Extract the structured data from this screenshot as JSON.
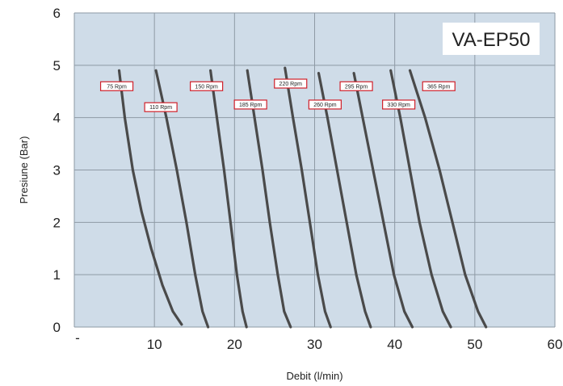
{
  "chart_data": {
    "type": "line",
    "title": "",
    "xlabel": "Debit (l/min)",
    "ylabel": "Presiune (Bar)",
    "model_label": "VA-EP50",
    "xlim": [
      0,
      60
    ],
    "ylim": [
      0,
      6
    ],
    "xticks": [
      "-",
      "10",
      "20",
      "30",
      "40",
      "50",
      "60"
    ],
    "yticks": [
      "0",
      "1",
      "2",
      "3",
      "4",
      "5",
      "6"
    ],
    "grid": true,
    "colors": {
      "plot_bg": "#cfdce8",
      "grid": "#8e9aa5",
      "line": "#4a4a4a",
      "label_border": "#d0202a"
    },
    "series": [
      {
        "name": "75 Rpm",
        "points": [
          [
            5.6,
            4.9
          ],
          [
            6.3,
            4.0
          ],
          [
            7.3,
            3.0
          ],
          [
            8.4,
            2.2
          ],
          [
            9.6,
            1.5
          ],
          [
            11.0,
            0.8
          ],
          [
            12.3,
            0.3
          ],
          [
            13.4,
            0.05
          ]
        ]
      },
      {
        "name": "110 Rpm",
        "points": [
          [
            10.2,
            4.9
          ],
          [
            11.5,
            4.0
          ],
          [
            12.8,
            3.0
          ],
          [
            14.0,
            2.0
          ],
          [
            15.1,
            1.0
          ],
          [
            16.0,
            0.3
          ],
          [
            16.7,
            0
          ]
        ]
      },
      {
        "name": "150 Rpm",
        "points": [
          [
            17.0,
            4.9
          ],
          [
            17.8,
            4.0
          ],
          [
            18.7,
            3.0
          ],
          [
            19.5,
            2.0
          ],
          [
            20.3,
            1.0
          ],
          [
            21.0,
            0.3
          ],
          [
            21.5,
            0
          ]
        ]
      },
      {
        "name": "185 Rpm",
        "points": [
          [
            21.6,
            4.9
          ],
          [
            22.5,
            4.0
          ],
          [
            23.5,
            3.0
          ],
          [
            24.4,
            2.0
          ],
          [
            25.4,
            1.0
          ],
          [
            26.2,
            0.3
          ],
          [
            27.0,
            0
          ]
        ]
      },
      {
        "name": "220 Rpm",
        "points": [
          [
            26.3,
            4.95
          ],
          [
            27.3,
            4.0
          ],
          [
            28.4,
            3.0
          ],
          [
            29.4,
            2.0
          ],
          [
            30.4,
            1.0
          ],
          [
            31.3,
            0.3
          ],
          [
            32.0,
            0
          ]
        ]
      },
      {
        "name": "260 Rpm",
        "points": [
          [
            30.5,
            4.85
          ],
          [
            31.6,
            4.0
          ],
          [
            32.8,
            3.0
          ],
          [
            34.0,
            2.0
          ],
          [
            35.2,
            1.0
          ],
          [
            36.3,
            0.3
          ],
          [
            37.0,
            0
          ]
        ]
      },
      {
        "name": "295 Rpm",
        "points": [
          [
            34.9,
            4.85
          ],
          [
            36.0,
            4.0
          ],
          [
            37.3,
            3.0
          ],
          [
            38.6,
            2.0
          ],
          [
            39.9,
            1.0
          ],
          [
            41.2,
            0.3
          ],
          [
            42.2,
            0
          ]
        ]
      },
      {
        "name": "330 Rpm",
        "points": [
          [
            39.5,
            4.9
          ],
          [
            40.7,
            4.0
          ],
          [
            41.9,
            3.0
          ],
          [
            43.1,
            2.0
          ],
          [
            44.6,
            1.0
          ],
          [
            46.0,
            0.3
          ],
          [
            47.0,
            0
          ]
        ]
      },
      {
        "name": "365 Rpm",
        "points": [
          [
            41.9,
            4.9
          ],
          [
            43.8,
            4.0
          ],
          [
            45.6,
            3.0
          ],
          [
            47.2,
            2.0
          ],
          [
            48.8,
            1.0
          ],
          [
            50.4,
            0.3
          ],
          [
            51.4,
            0
          ]
        ]
      }
    ],
    "annotations": [
      {
        "text": "75 Rpm",
        "series": "75 Rpm",
        "x": 5.3,
        "y": 4.6
      },
      {
        "text": "110 Rpm",
        "series": "110 Rpm",
        "x": 10.8,
        "y": 4.2
      },
      {
        "text": "150 Rpm",
        "series": "150 Rpm",
        "x": 16.5,
        "y": 4.6
      },
      {
        "text": "185 Rpm",
        "series": "185 Rpm",
        "x": 22.0,
        "y": 4.25
      },
      {
        "text": "220 Rpm",
        "series": "220 Rpm",
        "x": 27.0,
        "y": 4.65
      },
      {
        "text": "260 Rpm",
        "series": "260 Rpm",
        "x": 31.3,
        "y": 4.25
      },
      {
        "text": "295 Rpm",
        "series": "295 Rpm",
        "x": 35.2,
        "y": 4.6
      },
      {
        "text": "330 Rpm",
        "series": "330 Rpm",
        "x": 40.5,
        "y": 4.25
      },
      {
        "text": "365 Rpm",
        "series": "365 Rpm",
        "x": 45.5,
        "y": 4.6
      }
    ]
  }
}
